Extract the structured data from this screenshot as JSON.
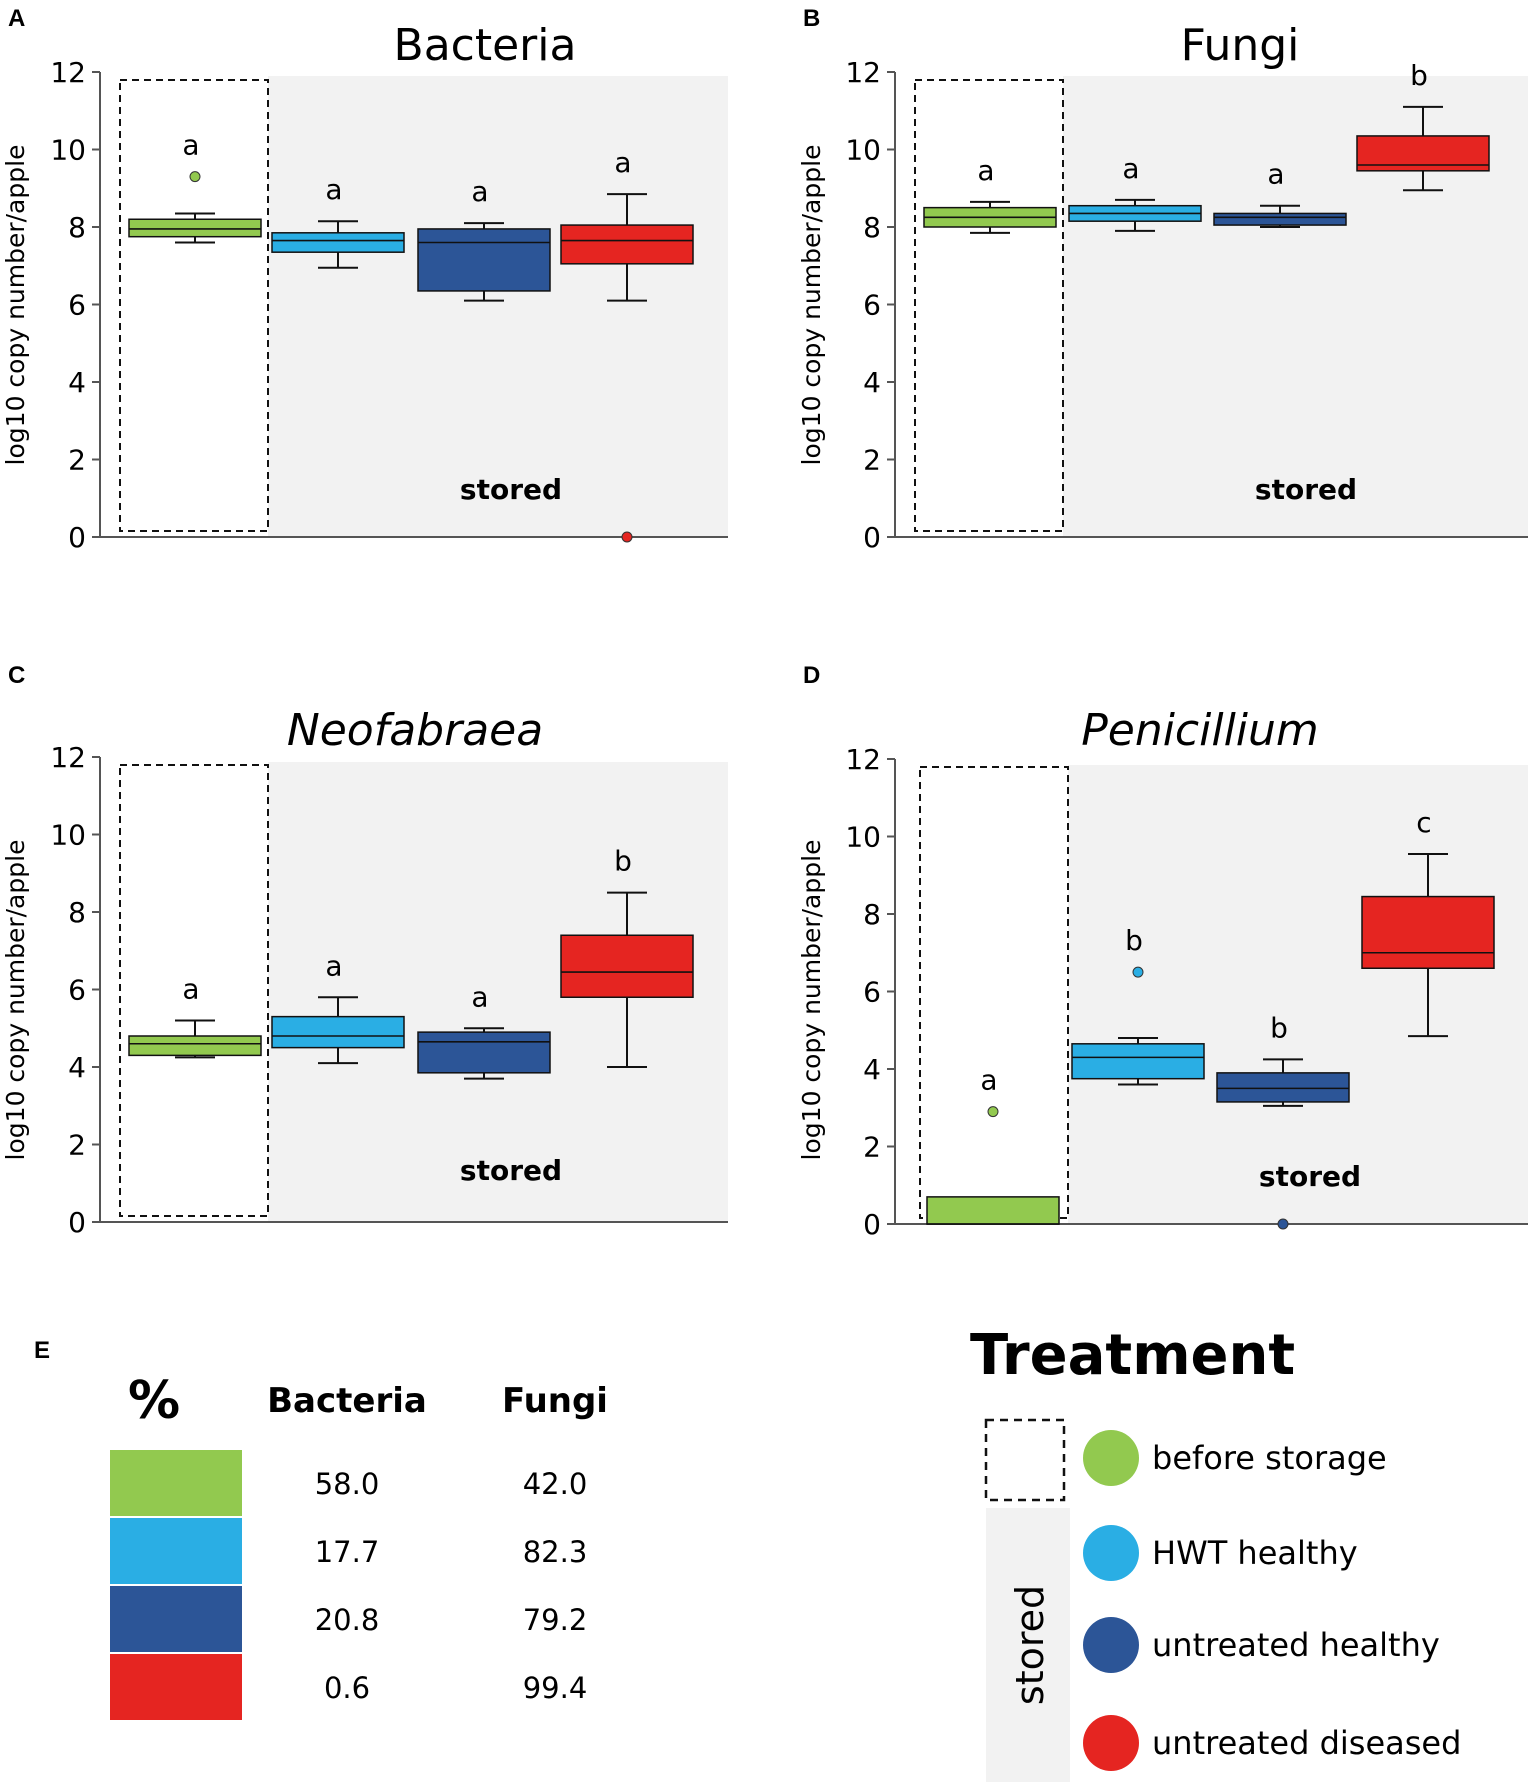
{
  "colors": {
    "before_storage": "#92c94f",
    "hwt_healthy": "#2aaee4",
    "untreated_healthy": "#2c5597",
    "untreated_diseased": "#e52521",
    "stored_bg": "#f2f2f2"
  },
  "chart_data": [
    {
      "panel": "A",
      "type": "box",
      "title": "Bacteria",
      "title_italic": false,
      "ylabel": "log10 copy number/apple",
      "ylim": [
        0,
        12
      ],
      "yticks": [
        "0",
        "2",
        "4",
        "6",
        "8",
        "10",
        "12"
      ],
      "stored_label": "stored",
      "groups": [
        {
          "name": "before storage",
          "min": 7.6,
          "q1": 7.75,
          "median": 7.95,
          "q3": 8.2,
          "max": 8.35,
          "outliers": [
            9.3
          ],
          "letter": "a"
        },
        {
          "name": "HWT healthy",
          "min": 6.95,
          "q1": 7.35,
          "median": 7.65,
          "q3": 7.85,
          "max": 8.15,
          "outliers": [],
          "letter": "a"
        },
        {
          "name": "untreated healthy",
          "min": 6.1,
          "q1": 6.35,
          "median": 7.6,
          "q3": 7.95,
          "max": 8.1,
          "outliers": [],
          "letter": "a"
        },
        {
          "name": "untreated diseased",
          "min": 6.1,
          "q1": 7.05,
          "median": 7.65,
          "q3": 8.05,
          "max": 8.85,
          "outliers": [
            0
          ],
          "letter": "a"
        }
      ]
    },
    {
      "panel": "B",
      "type": "box",
      "title": "Fungi",
      "title_italic": false,
      "ylabel": "log10 copy number/apple",
      "ylim": [
        0,
        12
      ],
      "yticks": [
        "0",
        "2",
        "4",
        "6",
        "8",
        "10",
        "12"
      ],
      "stored_label": "stored",
      "groups": [
        {
          "name": "before storage",
          "min": 7.85,
          "q1": 8.0,
          "median": 8.25,
          "q3": 8.5,
          "max": 8.65,
          "outliers": [],
          "letter": "a"
        },
        {
          "name": "HWT healthy",
          "min": 7.9,
          "q1": 8.15,
          "median": 8.35,
          "q3": 8.55,
          "max": 8.7,
          "outliers": [],
          "letter": "a"
        },
        {
          "name": "untreated healthy",
          "min": 8.0,
          "q1": 8.05,
          "median": 8.25,
          "q3": 8.35,
          "max": 8.55,
          "outliers": [],
          "letter": "a"
        },
        {
          "name": "untreated diseased",
          "min": 8.95,
          "q1": 9.45,
          "median": 9.6,
          "q3": 10.35,
          "max": 11.1,
          "outliers": [],
          "letter": "b"
        }
      ]
    },
    {
      "panel": "C",
      "type": "box",
      "title": "Neofabraea",
      "title_italic": true,
      "ylabel": "log10 copy number/apple",
      "ylim": [
        0,
        12
      ],
      "yticks": [
        "0",
        "2",
        "4",
        "6",
        "8",
        "10",
        "12"
      ],
      "stored_label": "stored",
      "groups": [
        {
          "name": "before storage",
          "min": 4.25,
          "q1": 4.3,
          "median": 4.6,
          "q3": 4.8,
          "max": 5.2,
          "outliers": [],
          "letter": "a"
        },
        {
          "name": "HWT healthy",
          "min": 4.1,
          "q1": 4.5,
          "median": 4.8,
          "q3": 5.3,
          "max": 5.8,
          "outliers": [],
          "letter": "a"
        },
        {
          "name": "untreated healthy",
          "min": 3.7,
          "q1": 3.85,
          "median": 4.65,
          "q3": 4.9,
          "max": 5.0,
          "outliers": [],
          "letter": "a"
        },
        {
          "name": "untreated diseased",
          "min": 4.0,
          "q1": 5.8,
          "median": 6.45,
          "q3": 7.4,
          "max": 8.5,
          "outliers": [],
          "letter": "b"
        }
      ]
    },
    {
      "panel": "D",
      "type": "box",
      "title": "Penicillium",
      "title_italic": true,
      "ylabel": "log10 copy number/apple",
      "ylim": [
        0,
        12
      ],
      "yticks": [
        "0",
        "2",
        "4",
        "6",
        "8",
        "10",
        "12"
      ],
      "stored_label": "stored",
      "groups": [
        {
          "name": "before storage",
          "min": 0,
          "q1": 0,
          "median": 0,
          "q3": 0.7,
          "max": 0.7,
          "outliers": [
            2.9
          ],
          "letter": "a"
        },
        {
          "name": "HWT healthy",
          "min": 3.6,
          "q1": 3.75,
          "median": 4.3,
          "q3": 4.65,
          "max": 4.8,
          "outliers": [
            6.5
          ],
          "letter": "b"
        },
        {
          "name": "untreated healthy",
          "min": 3.05,
          "q1": 3.15,
          "median": 3.5,
          "q3": 3.9,
          "max": 4.25,
          "outliers": [
            0
          ],
          "letter": "b"
        },
        {
          "name": "untreated diseased",
          "min": 4.85,
          "q1": 6.6,
          "median": 7.0,
          "q3": 8.45,
          "max": 9.55,
          "outliers": [],
          "letter": "c"
        }
      ]
    },
    {
      "panel": "E",
      "type": "table",
      "headers": [
        "%",
        "Bacteria",
        "Fungi"
      ],
      "rows": [
        {
          "group": "before storage",
          "bacteria": "58.0",
          "fungi": "42.0"
        },
        {
          "group": "HWT healthy",
          "bacteria": "17.7",
          "fungi": "82.3"
        },
        {
          "group": "untreated healthy",
          "bacteria": "20.8",
          "fungi": "79.2"
        },
        {
          "group": "untreated diseased",
          "bacteria": "0.6",
          "fungi": "99.4"
        }
      ]
    }
  ],
  "legend": {
    "title": "Treatment",
    "stored_label": "stored",
    "items": [
      "before storage",
      "HWT healthy",
      "untreated healthy",
      "untreated diseased"
    ]
  }
}
